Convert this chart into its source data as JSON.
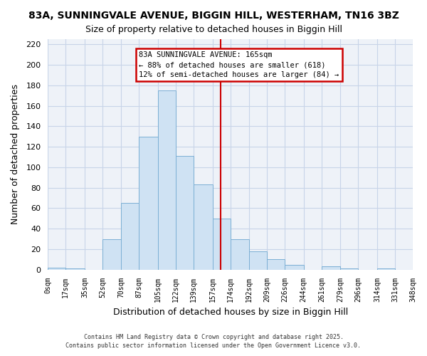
{
  "title": "83A, SUNNINGVALE AVENUE, BIGGIN HILL, WESTERHAM, TN16 3BZ",
  "subtitle": "Size of property relative to detached houses in Biggin Hill",
  "xlabel": "Distribution of detached houses by size in Biggin Hill",
  "ylabel": "Number of detached properties",
  "bin_edges": [
    0,
    17,
    35,
    52,
    70,
    87,
    105,
    122,
    139,
    157,
    174,
    192,
    209,
    226,
    244,
    261,
    279,
    296,
    314,
    331,
    348
  ],
  "bar_heights": [
    2,
    1,
    0,
    30,
    65,
    130,
    175,
    111,
    83,
    50,
    30,
    18,
    10,
    5,
    0,
    3,
    1,
    0,
    1,
    0
  ],
  "bar_color": "#cfe2f3",
  "bar_edgecolor": "#7bafd4",
  "property_line_x": 165,
  "property_line_color": "#cc0000",
  "annotation_title": "83A SUNNINGVALE AVENUE: 165sqm",
  "annotation_line1": "← 88% of detached houses are smaller (618)",
  "annotation_line2": "12% of semi-detached houses are larger (84) →",
  "annotation_box_edgecolor": "#cc0000",
  "ylim": [
    0,
    225
  ],
  "yticks": [
    0,
    20,
    40,
    60,
    80,
    100,
    120,
    140,
    160,
    180,
    200,
    220
  ],
  "tick_labels": [
    "0sqm",
    "17sqm",
    "35sqm",
    "52sqm",
    "70sqm",
    "87sqm",
    "105sqm",
    "122sqm",
    "139sqm",
    "157sqm",
    "174sqm",
    "192sqm",
    "209sqm",
    "226sqm",
    "244sqm",
    "261sqm",
    "279sqm",
    "296sqm",
    "314sqm",
    "331sqm",
    "348sqm"
  ],
  "footer_line1": "Contains HM Land Registry data © Crown copyright and database right 2025.",
  "footer_line2": "Contains public sector information licensed under the Open Government Licence v3.0.",
  "bg_color": "#ffffff",
  "plot_bg_color": "#eef2f8",
  "grid_color": "#c8d4e8"
}
